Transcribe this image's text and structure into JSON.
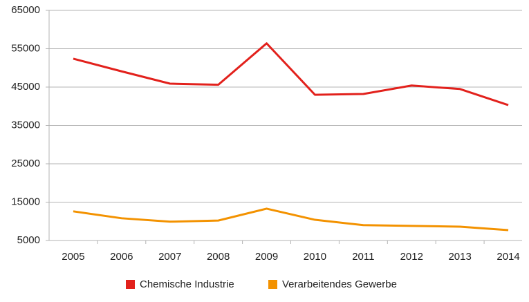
{
  "chart_data": {
    "type": "line",
    "categories": [
      "2005",
      "2006",
      "2007",
      "2008",
      "2009",
      "2010",
      "2011",
      "2012",
      "2013",
      "2014"
    ],
    "series": [
      {
        "name": "Chemische Industrie",
        "color": "#e2211c",
        "values": [
          52400,
          49100,
          45900,
          45600,
          56400,
          43000,
          43200,
          45400,
          44500,
          40300
        ]
      },
      {
        "name": "Verarbeitendes Gewerbe",
        "color": "#f39200",
        "values": [
          12600,
          10800,
          9900,
          10200,
          13300,
          10400,
          9000,
          8800,
          8600,
          7700
        ]
      }
    ],
    "ylim": [
      5000,
      65000
    ],
    "yticks": [
      5000,
      15000,
      25000,
      35000,
      45000,
      55000,
      65000
    ],
    "grid": true,
    "legend": "bottom"
  }
}
